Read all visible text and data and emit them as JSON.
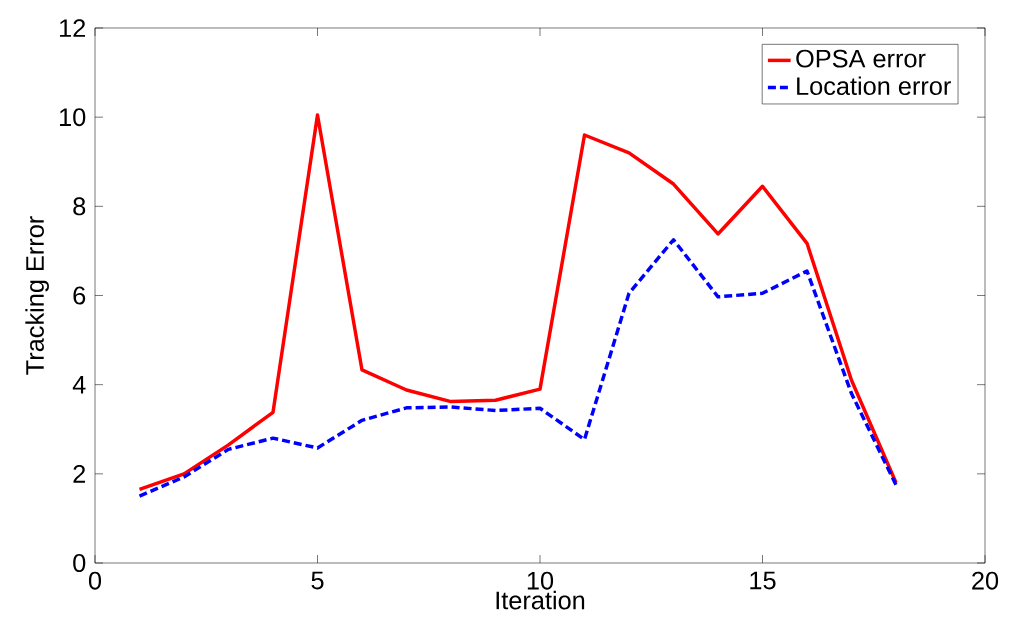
{
  "chart_data": {
    "type": "line",
    "xlabel": "Iteration",
    "ylabel": "Tracking Error",
    "x": [
      1,
      2,
      3,
      4,
      5,
      6,
      7,
      8,
      9,
      10,
      11,
      12,
      13,
      14,
      15,
      16,
      17,
      18
    ],
    "series": [
      {
        "name": "OPSA error",
        "color": "#ff0000",
        "line_style": "solid",
        "values": [
          1.65,
          2.0,
          2.65,
          3.38,
          10.05,
          4.33,
          3.88,
          3.62,
          3.65,
          3.9,
          9.6,
          9.2,
          8.5,
          7.38,
          8.45,
          7.17,
          4.1,
          1.8
        ]
      },
      {
        "name": "Location error",
        "color": "#0000ff",
        "line_style": "dashed",
        "values": [
          1.5,
          1.93,
          2.55,
          2.8,
          2.58,
          3.2,
          3.48,
          3.5,
          3.42,
          3.47,
          2.77,
          6.05,
          7.25,
          5.97,
          6.05,
          6.55,
          3.8,
          1.75
        ]
      }
    ],
    "xlim": [
      0,
      20
    ],
    "ylim": [
      0,
      12
    ],
    "xticks": [
      0,
      5,
      10,
      15,
      20
    ],
    "yticks": [
      0,
      2,
      4,
      6,
      8,
      10,
      12
    ],
    "grid": false,
    "legend": "top right",
    "marker": "none"
  }
}
